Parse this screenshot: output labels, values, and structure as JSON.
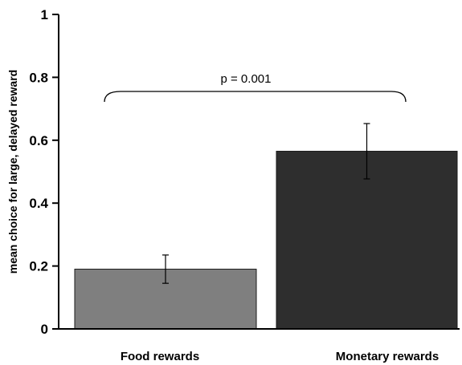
{
  "chart_data": {
    "type": "bar",
    "categories": [
      "Food rewards",
      "Monetary rewards"
    ],
    "values": [
      0.19,
      0.565
    ],
    "errors": [
      0.045,
      0.088
    ],
    "ylabel": "mean choice for large, delayed reward",
    "xlabel": "",
    "ylim": [
      0,
      1
    ],
    "yticks": [
      "0",
      "0.2",
      "0.4",
      "0.6",
      "0.8",
      "1"
    ],
    "grid": false,
    "bar_colors": [
      "#7f7f7f",
      "#2e2e2e"
    ],
    "annotation": {
      "text": "p = 0.001",
      "type": "bracket",
      "between": [
        "Food rewards",
        "Monetary rewards"
      ]
    }
  }
}
